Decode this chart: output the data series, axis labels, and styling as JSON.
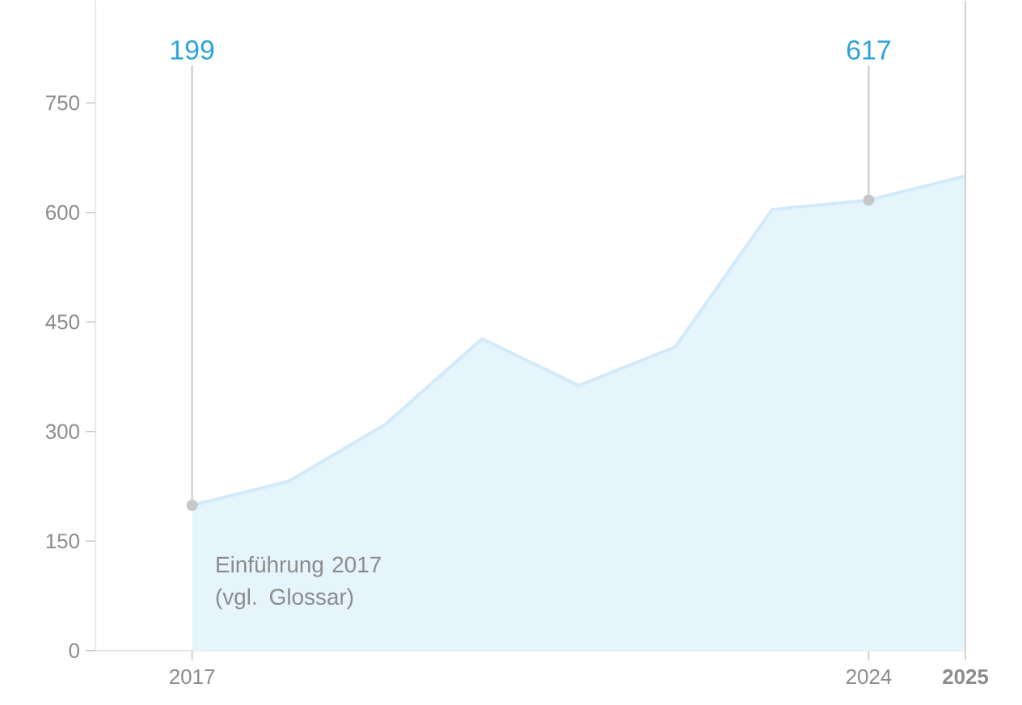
{
  "chart_data": {
    "type": "area",
    "x": [
      2017,
      2018,
      2019,
      2020,
      2021,
      2022,
      2023,
      2024,
      2025
    ],
    "series": [
      {
        "color": "#d2eaf9",
        "values": [
          199,
          232,
          310,
          427,
          363,
          416,
          604,
          617,
          650
        ]
      }
    ],
    "xlim": [
      2016,
      2025
    ],
    "ylim": [
      0,
      890
    ],
    "xticks": [
      2017,
      2024,
      {
        "value": 2025,
        "label": "**2025**"
      }
    ],
    "yticks": [
      0,
      150,
      300,
      450,
      600,
      750
    ],
    "annotations": [
      {
        "text": "199",
        "x": 2017,
        "y": 199
      },
      {
        "text": "617",
        "x": 2024,
        "y": 617
      },
      "Einführung 2017 (vgl. Glossar)"
    ],
    "grid": false
  }
}
